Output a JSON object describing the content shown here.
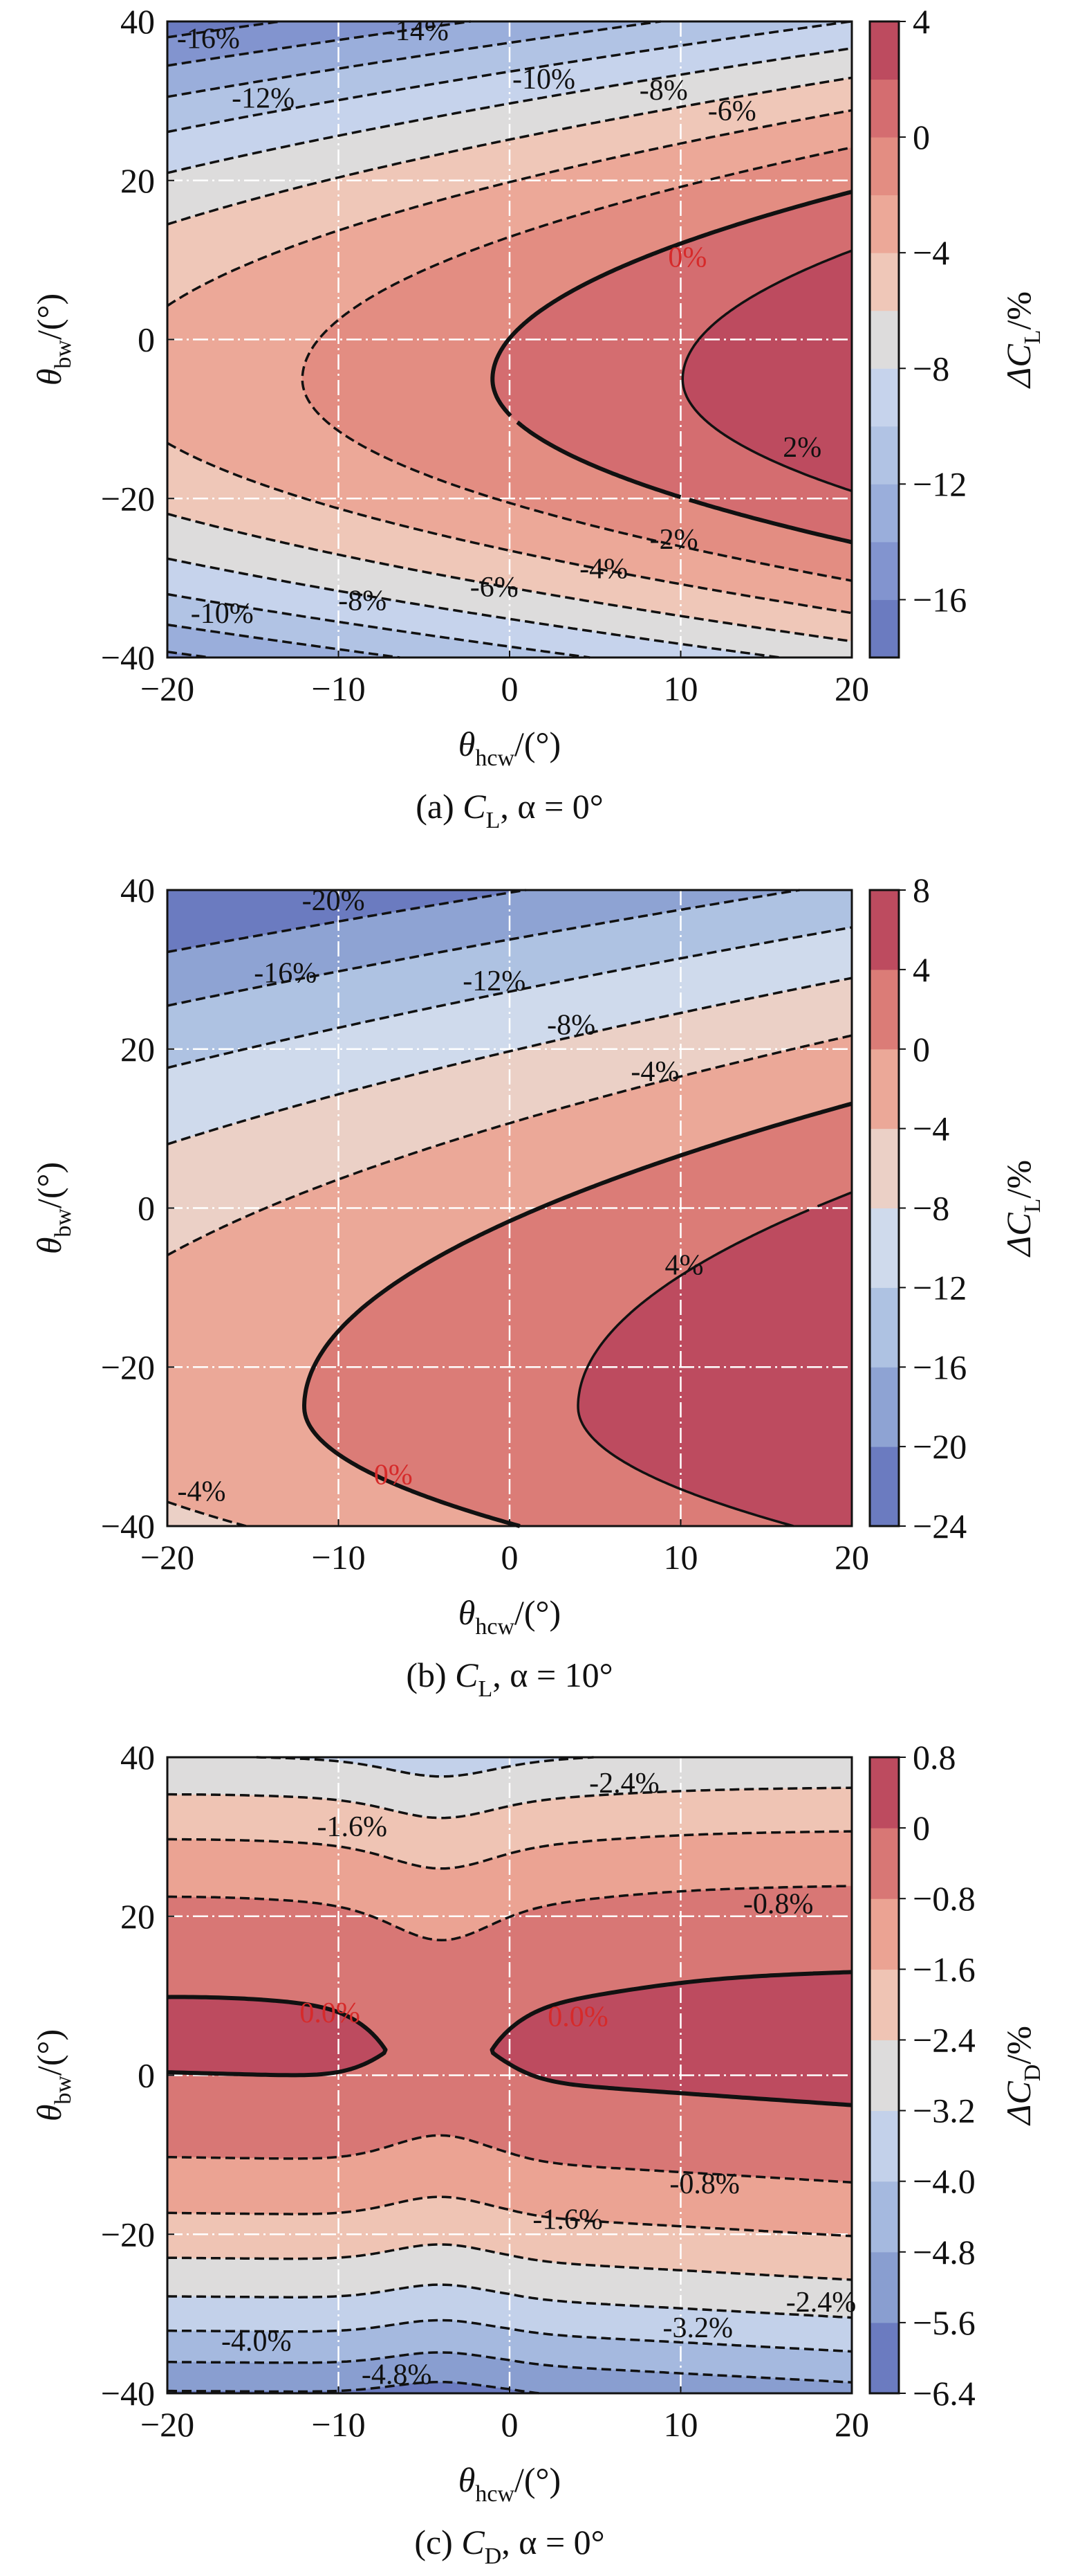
{
  "chart_data": [
    {
      "type": "contour",
      "caption": {
        "label": "(a) ",
        "var": "C",
        "var_sub": "L",
        "rest": ", α = 0°"
      },
      "xlabel": {
        "sym": "θ",
        "sub": "hcw",
        "unit": "/(°)"
      },
      "ylabel": {
        "sym": "θ",
        "sub": "bw",
        "unit": "/(°)"
      },
      "xlim": [
        -20,
        20
      ],
      "ylim": [
        -40,
        40
      ],
      "xticks": [
        {
          "v": -20,
          "t": "−20"
        },
        {
          "v": -10,
          "t": "−10"
        },
        {
          "v": 0,
          "t": "0"
        },
        {
          "v": 10,
          "t": "10"
        },
        {
          "v": 20,
          "t": "20"
        }
      ],
      "yticks": [
        {
          "v": 40,
          "t": "40"
        },
        {
          "v": 20,
          "t": "20"
        },
        {
          "v": 0,
          "t": "0"
        },
        {
          "v": -20,
          "t": "−20"
        },
        {
          "v": -40,
          "t": "−40"
        }
      ],
      "grid": {
        "on": true,
        "style": "white dash-dot",
        "x": [
          -10,
          0,
          10
        ],
        "y": [
          20,
          0,
          -20
        ]
      },
      "colorbar": {
        "label": {
          "sym": "ΔC",
          "sub": "L",
          "unit": "/%"
        },
        "range": [
          -18,
          4
        ],
        "step": 2,
        "ticks": [
          {
            "v": 4,
            "t": "4"
          },
          {
            "v": 0,
            "t": "0"
          },
          {
            "v": -4,
            "t": "−4"
          },
          {
            "v": -8,
            "t": "−8"
          },
          {
            "v": -12,
            "t": "−12"
          },
          {
            "v": -16,
            "t": "−16"
          }
        ],
        "band_colors": [
          "#6b7bc0",
          "#8294cf",
          "#9aaedb",
          "#b1c3e4",
          "#c6d3ec",
          "#dddcdc",
          "#efc7b8",
          "#eca898",
          "#e38d82",
          "#d46d70",
          "#bd4b5f"
        ]
      },
      "contour_labels": [
        {
          "text": "-16%",
          "x": -17.6,
          "y": 37.5,
          "color": "#111111"
        },
        {
          "text": "-14%",
          "x": -5.4,
          "y": 38.5,
          "color": "#111111"
        },
        {
          "text": "-12%",
          "x": -14.4,
          "y": 30,
          "color": "#111111"
        },
        {
          "text": "-10%",
          "x": 2,
          "y": 32.4,
          "color": "#111111"
        },
        {
          "text": "-8%",
          "x": 9,
          "y": 31,
          "color": "#111111"
        },
        {
          "text": "-6%",
          "x": 13,
          "y": 28.4,
          "color": "#111111"
        },
        {
          "text": "0%",
          "x": 10.4,
          "y": 10,
          "color": "#d62a2a"
        },
        {
          "text": "2%",
          "x": 17.1,
          "y": -13.9,
          "color": "#111111"
        },
        {
          "text": "-2%",
          "x": 9.6,
          "y": -25.5,
          "color": "#111111"
        },
        {
          "text": "-4%",
          "x": 5.5,
          "y": -29.2,
          "color": "#111111"
        },
        {
          "text": "-6%",
          "x": -0.9,
          "y": -31.5,
          "color": "#111111"
        },
        {
          "text": "-8%",
          "x": -8.6,
          "y": -33.2,
          "color": "#111111"
        },
        {
          "text": "-10%",
          "x": -16.8,
          "y": -34.8,
          "color": "#111111"
        }
      ]
    },
    {
      "type": "contour",
      "caption": {
        "label": "(b) ",
        "var": "C",
        "var_sub": "L",
        "rest": ", α = 10°"
      },
      "xlabel": {
        "sym": "θ",
        "sub": "hcw",
        "unit": "/(°)"
      },
      "ylabel": {
        "sym": "θ",
        "sub": "bw",
        "unit": "/(°)"
      },
      "xlim": [
        -20,
        20
      ],
      "ylim": [
        -40,
        40
      ],
      "xticks": [
        {
          "v": -20,
          "t": "−20"
        },
        {
          "v": -10,
          "t": "−10"
        },
        {
          "v": 0,
          "t": "0"
        },
        {
          "v": 10,
          "t": "10"
        },
        {
          "v": 20,
          "t": "20"
        }
      ],
      "yticks": [
        {
          "v": 40,
          "t": "40"
        },
        {
          "v": 20,
          "t": "20"
        },
        {
          "v": 0,
          "t": "0"
        },
        {
          "v": -20,
          "t": "−20"
        },
        {
          "v": -40,
          "t": "−40"
        }
      ],
      "grid": {
        "on": true,
        "style": "white dash-dot",
        "x": [
          -10,
          0,
          10
        ],
        "y": [
          20,
          0,
          -20
        ]
      },
      "colorbar": {
        "label": {
          "sym": "ΔC",
          "sub": "L",
          "unit": "/%"
        },
        "range": [
          -24,
          8
        ],
        "step": 4,
        "ticks": [
          {
            "v": 8,
            "t": "8"
          },
          {
            "v": 4,
            "t": "4"
          },
          {
            "v": 0,
            "t": "0"
          },
          {
            "v": -4,
            "t": "−4"
          },
          {
            "v": -8,
            "t": "−8"
          },
          {
            "v": -12,
            "t": "−12"
          },
          {
            "v": -16,
            "t": "−16"
          },
          {
            "v": -20,
            "t": "−20"
          },
          {
            "v": -24,
            "t": "−24"
          }
        ],
        "band_colors": [
          "#6b7bc0",
          "#8ea3d3",
          "#aec2e2",
          "#cfdaec",
          "#ebd0c6",
          "#eba898",
          "#db7c77",
          "#bd4b5f"
        ]
      },
      "contour_labels": [
        {
          "text": "-20%",
          "x": -10.3,
          "y": 38.3,
          "color": "#111111"
        },
        {
          "text": "-16%",
          "x": -13.1,
          "y": 29.2,
          "color": "#111111"
        },
        {
          "text": "-12%",
          "x": -0.9,
          "y": 28.2,
          "color": "#111111"
        },
        {
          "text": "-8%",
          "x": 3.6,
          "y": 22.7,
          "color": "#111111"
        },
        {
          "text": "-4%",
          "x": 8.5,
          "y": 16.8,
          "color": "#111111"
        },
        {
          "text": "4%",
          "x": 10.2,
          "y": -7.5,
          "color": "#111111"
        },
        {
          "text": "0%",
          "x": -6.8,
          "y": -33.9,
          "color": "#d62a2a"
        },
        {
          "text": "-4%",
          "x": -18,
          "y": -36,
          "color": "#111111"
        }
      ]
    },
    {
      "type": "contour",
      "caption": {
        "label": "(c) ",
        "var": "C",
        "var_sub": "D",
        "rest": ", α = 0°"
      },
      "xlabel": {
        "sym": "θ",
        "sub": "hcw",
        "unit": "/(°)"
      },
      "ylabel": {
        "sym": "θ",
        "sub": "bw",
        "unit": "/(°)"
      },
      "xlim": [
        -20,
        20
      ],
      "ylim": [
        -40,
        40
      ],
      "xticks": [
        {
          "v": -20,
          "t": "−20"
        },
        {
          "v": -10,
          "t": "−10"
        },
        {
          "v": 0,
          "t": "0"
        },
        {
          "v": 10,
          "t": "10"
        },
        {
          "v": 20,
          "t": "20"
        }
      ],
      "yticks": [
        {
          "v": 40,
          "t": "40"
        },
        {
          "v": 20,
          "t": "20"
        },
        {
          "v": 0,
          "t": "0"
        },
        {
          "v": -20,
          "t": "−20"
        },
        {
          "v": -40,
          "t": "−40"
        }
      ],
      "grid": {
        "on": true,
        "style": "white dash-dot",
        "x": [
          -10,
          0,
          10
        ],
        "y": [
          20,
          0,
          -20
        ]
      },
      "colorbar": {
        "label": {
          "sym": "ΔC",
          "sub": "D",
          "unit": "/%"
        },
        "range": [
          -6.4,
          0.8
        ],
        "step": 0.8,
        "ticks": [
          {
            "v": 0.8,
            "t": "0.8"
          },
          {
            "v": 0,
            "t": "0"
          },
          {
            "v": -0.8,
            "t": "−0.8"
          },
          {
            "v": -1.6,
            "t": "−1.6"
          },
          {
            "v": -2.4,
            "t": "−2.4"
          },
          {
            "v": -3.2,
            "t": "−3.2"
          },
          {
            "v": -4.0,
            "t": "−4.0"
          },
          {
            "v": -4.8,
            "t": "−4.8"
          },
          {
            "v": -5.6,
            "t": "−5.6"
          },
          {
            "v": -6.4,
            "t": "−6.4"
          }
        ],
        "band_colors": [
          "#6b7bc0",
          "#899ed0",
          "#a5b9df",
          "#c3d1ea",
          "#dddcdc",
          "#efc4b4",
          "#eba393",
          "#d87775",
          "#bd4b5f"
        ]
      },
      "contour_labels": [
        {
          "text": "-2.4%",
          "x": 6.7,
          "y": 36.4,
          "color": "#111111"
        },
        {
          "text": "-1.6%",
          "x": -9.2,
          "y": 30.9,
          "color": "#111111"
        },
        {
          "text": "-0.8%",
          "x": 15.7,
          "y": 21.2,
          "color": "#111111"
        },
        {
          "text": "0.0%",
          "x": -10.5,
          "y": 7.5,
          "color": "#d62a2a"
        },
        {
          "text": "0.0%",
          "x": 4,
          "y": 7,
          "color": "#d62a2a"
        },
        {
          "text": "-0.8%",
          "x": 11.4,
          "y": -14,
          "color": "#111111"
        },
        {
          "text": "-1.6%",
          "x": 3.4,
          "y": -18.5,
          "color": "#111111"
        },
        {
          "text": "-2.4%",
          "x": 18.2,
          "y": -28.9,
          "color": "#111111"
        },
        {
          "text": "-3.2%",
          "x": 11,
          "y": -32.1,
          "color": "#111111"
        },
        {
          "text": "-4.0%",
          "x": -14.8,
          "y": -33.8,
          "color": "#111111"
        },
        {
          "text": "-4.8%",
          "x": -6.6,
          "y": -38,
          "color": "#111111"
        }
      ]
    }
  ]
}
